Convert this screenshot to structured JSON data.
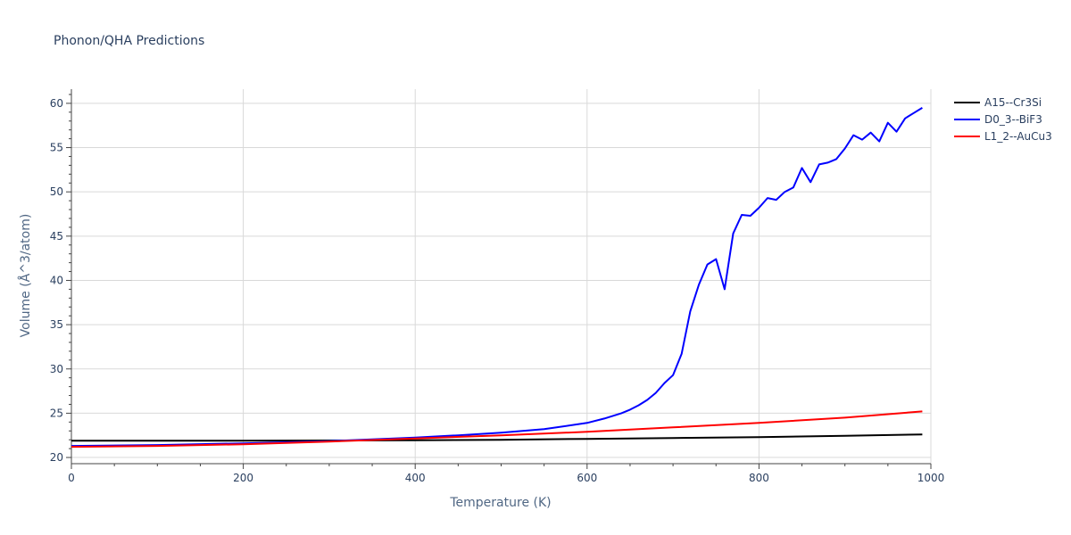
{
  "chart_data": {
    "type": "line",
    "title": "Phonon/QHA Predictions",
    "xlabel": "Temperature (K)",
    "ylabel": "Volume (Å^3/atom)",
    "xlim": [
      0,
      1000
    ],
    "ylim": [
      19.3,
      61.6
    ],
    "xticks": [
      0,
      200,
      400,
      600,
      800,
      1000
    ],
    "yticks": [
      20,
      25,
      30,
      35,
      40,
      45,
      50,
      55,
      60
    ],
    "grid": true,
    "legend_position": "top-right",
    "series": [
      {
        "name": "A15--Cr3Si",
        "color": "#000000",
        "x": [
          0,
          100,
          200,
          300,
          400,
          500,
          600,
          700,
          800,
          900,
          990
        ],
        "y": [
          21.9,
          21.9,
          21.9,
          21.92,
          21.95,
          22.0,
          22.1,
          22.2,
          22.3,
          22.45,
          22.6
        ]
      },
      {
        "name": "D0_3--BiF3",
        "color": "#0000ff",
        "x": [
          0,
          100,
          200,
          300,
          350,
          400,
          450,
          500,
          550,
          600,
          620,
          640,
          650,
          660,
          670,
          680,
          690,
          700,
          710,
          720,
          730,
          740,
          750,
          760,
          770,
          780,
          790,
          800,
          810,
          820,
          830,
          840,
          850,
          860,
          870,
          880,
          890,
          900,
          910,
          920,
          930,
          940,
          950,
          960,
          970,
          980,
          990
        ],
        "y": [
          21.3,
          21.4,
          21.6,
          21.85,
          22.05,
          22.25,
          22.5,
          22.8,
          23.2,
          23.9,
          24.4,
          25.0,
          25.4,
          25.9,
          26.5,
          27.3,
          28.4,
          29.3,
          31.7,
          36.5,
          39.5,
          41.8,
          42.4,
          39.0,
          45.3,
          47.4,
          47.3,
          48.2,
          49.3,
          49.1,
          50.0,
          50.5,
          52.7,
          51.1,
          53.1,
          53.3,
          53.7,
          54.9,
          56.4,
          55.9,
          56.7,
          55.7,
          57.8,
          56.8,
          58.3,
          58.9,
          59.5
        ]
      },
      {
        "name": "L1_2--AuCu3",
        "color": "#ff0000",
        "x": [
          0,
          100,
          200,
          300,
          400,
          500,
          600,
          700,
          800,
          900,
          990
        ],
        "y": [
          21.2,
          21.3,
          21.5,
          21.8,
          22.15,
          22.5,
          22.9,
          23.4,
          23.9,
          24.5,
          25.2
        ]
      }
    ]
  }
}
